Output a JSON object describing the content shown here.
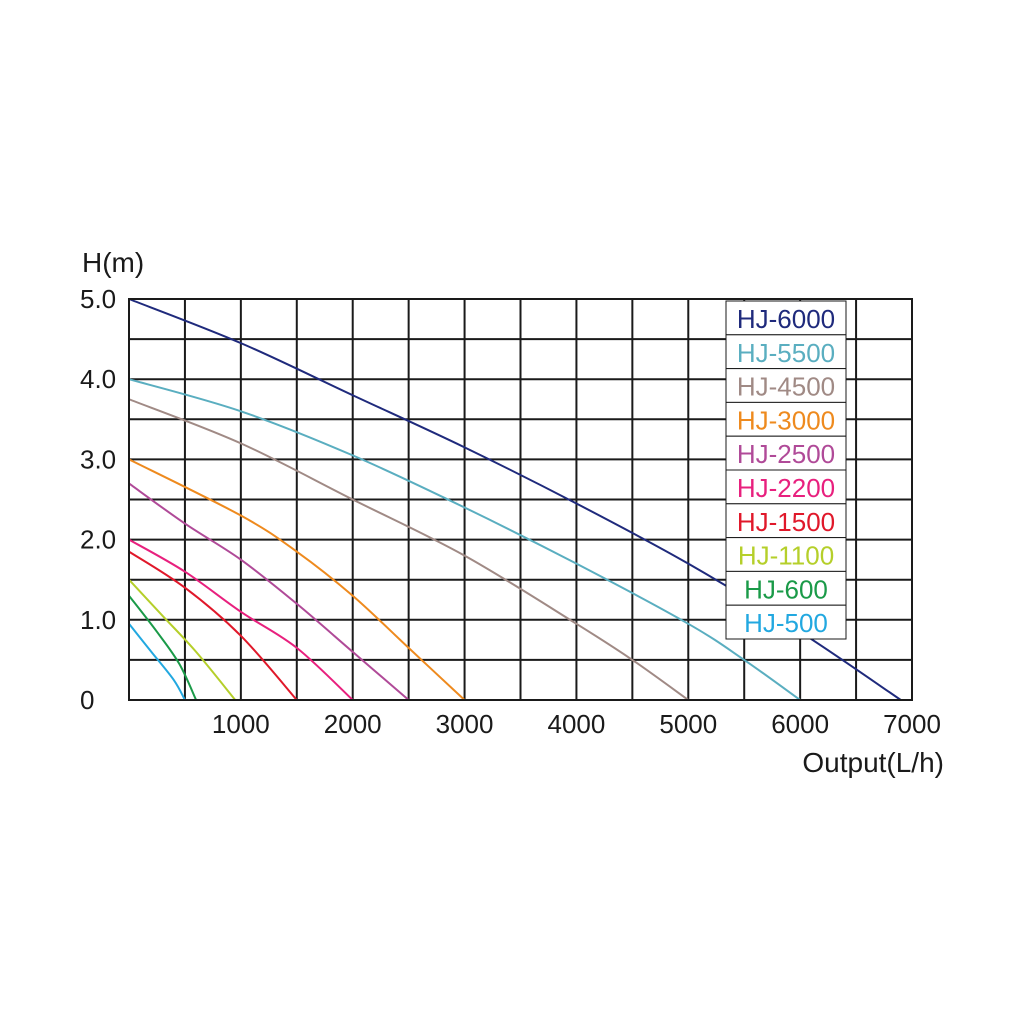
{
  "chart_data": {
    "type": "line",
    "title": "",
    "xlabel": "Output(L/h)",
    "ylabel": "H(m)",
    "xlim": [
      0,
      7000
    ],
    "ylim": [
      0,
      5.0
    ],
    "grid": true,
    "x_ticks": [
      "1000",
      "2000",
      "3000",
      "4000",
      "5000",
      "6000",
      "7000"
    ],
    "y_ticks": [
      "5.0",
      "4.0",
      "3.0",
      "2.0",
      "1.0",
      "0"
    ],
    "legend_position": "top-right",
    "series": [
      {
        "name": "HJ-6000",
        "color": "#1f2a7c",
        "x": [
          0,
          1000,
          2000,
          3000,
          4000,
          5000,
          6000,
          6900
        ],
        "y": [
          5.0,
          4.45,
          3.8,
          3.15,
          2.45,
          1.7,
          0.85,
          0
        ]
      },
      {
        "name": "HJ-5500",
        "color": "#5aaec0",
        "x": [
          0,
          1000,
          2000,
          3000,
          4000,
          5000,
          5500,
          6000
        ],
        "y": [
          4.0,
          3.6,
          3.05,
          2.4,
          1.7,
          0.95,
          0.5,
          0
        ]
      },
      {
        "name": "HJ-4500",
        "color": "#a08a85",
        "x": [
          0,
          1000,
          2000,
          3000,
          4000,
          4500,
          5000
        ],
        "y": [
          3.75,
          3.2,
          2.5,
          1.8,
          0.95,
          0.5,
          0
        ]
      },
      {
        "name": "HJ-3000",
        "color": "#ee8a1e",
        "x": [
          0,
          1000,
          1500,
          2000,
          2500,
          3000
        ],
        "y": [
          3.0,
          2.3,
          1.85,
          1.3,
          0.65,
          0
        ]
      },
      {
        "name": "HJ-2500",
        "color": "#b04a98",
        "x": [
          0,
          500,
          1000,
          1500,
          2000,
          2500
        ],
        "y": [
          2.7,
          2.2,
          1.75,
          1.2,
          0.6,
          0
        ]
      },
      {
        "name": "HJ-2200",
        "color": "#e8207e",
        "x": [
          0,
          500,
          1000,
          1500,
          2000
        ],
        "y": [
          2.0,
          1.6,
          1.1,
          0.65,
          0
        ]
      },
      {
        "name": "HJ-1500",
        "color": "#e0182a",
        "x": [
          0,
          500,
          1000,
          1500
        ],
        "y": [
          1.85,
          1.4,
          0.8,
          0
        ]
      },
      {
        "name": "HJ-1100",
        "color": "#b5cf2a",
        "x": [
          0,
          300,
          600,
          950
        ],
        "y": [
          1.5,
          1.05,
          0.6,
          0
        ]
      },
      {
        "name": "HJ-600",
        "color": "#1a9a48",
        "x": [
          0,
          250,
          450,
          600
        ],
        "y": [
          1.3,
          0.85,
          0.45,
          0
        ]
      },
      {
        "name": "HJ-500",
        "color": "#22a8e0",
        "x": [
          0,
          200,
          400,
          500
        ],
        "y": [
          0.95,
          0.6,
          0.25,
          0
        ]
      }
    ]
  }
}
